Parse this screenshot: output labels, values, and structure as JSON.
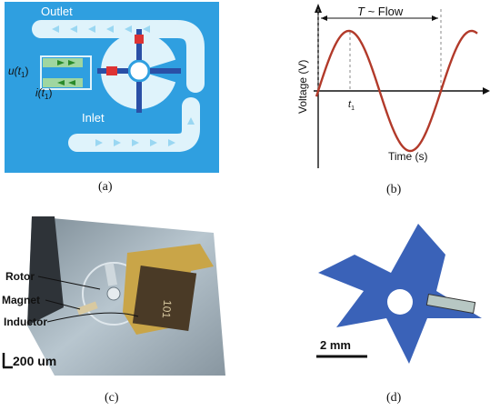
{
  "panel_a": {
    "caption": "(a)",
    "outlet_label": "Outlet",
    "inlet_label": "Inlet",
    "u_label": "u(t",
    "u_sub": "1",
    "u_close": ")",
    "i_label": "i(t",
    "i_sub": "1",
    "i_close": ")",
    "colors": {
      "background": "#2f9fe0",
      "channel": "#dff3fb"
    }
  },
  "panel_b": {
    "caption": "(b)",
    "period_T": "T",
    "period_rest": " ~ Flow",
    "ylabel": "Voltage (V)",
    "xlabel": "Time (s)",
    "t1_label": "t",
    "t1_sub": "1",
    "colors": {
      "sine": "#b23a2a"
    }
  },
  "panel_c": {
    "caption": "(c)",
    "rotor_label": "Rotor",
    "magnet_label": "Magnet",
    "inductor_label": "Inductor",
    "scale_label": "200 um",
    "chip_marking": "101"
  },
  "panel_d": {
    "caption": "(d)",
    "scale_label": "2 mm",
    "colors": {
      "rotor": "#3a62b8"
    }
  }
}
